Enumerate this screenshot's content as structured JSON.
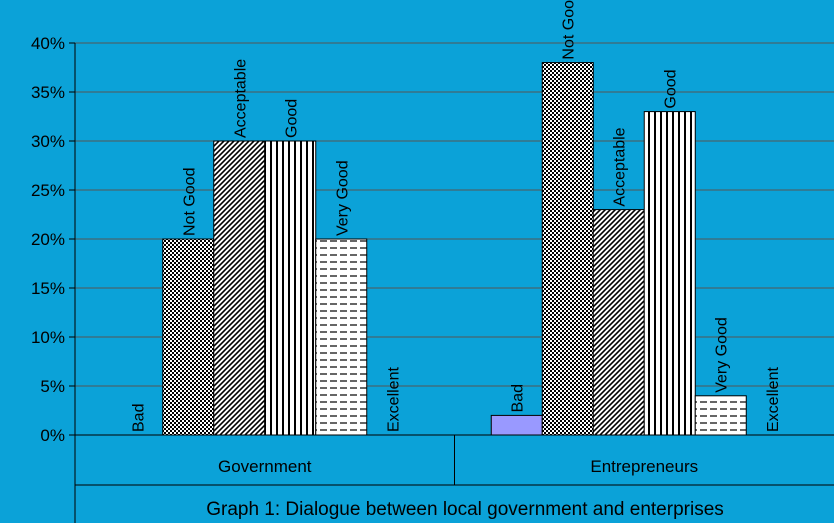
{
  "chart_data": {
    "type": "bar",
    "categories": [
      "Government",
      "Entrepreneurs"
    ],
    "series": [
      {
        "name": "Bad",
        "values": [
          0,
          2
        ]
      },
      {
        "name": "Not Good",
        "values": [
          20,
          38
        ]
      },
      {
        "name": "Acceptable",
        "values": [
          30,
          23
        ]
      },
      {
        "name": "Good",
        "values": [
          30,
          33
        ]
      },
      {
        "name": "Very Good",
        "values": [
          20,
          4
        ]
      },
      {
        "name": "Excellent",
        "values": [
          0,
          0
        ]
      }
    ],
    "yticks": [
      "0%",
      "5%",
      "10%",
      "15%",
      "20%",
      "25%",
      "30%",
      "35%",
      "40%"
    ],
    "ylim": [
      0,
      40
    ],
    "grid": true,
    "legend": "none",
    "xlabel": "Graph 1: Dialogue between local government and enterprises",
    "colors": {
      "background": "#0BA2D8",
      "grid": "#555555",
      "bad_fill": "#9999FF"
    }
  }
}
